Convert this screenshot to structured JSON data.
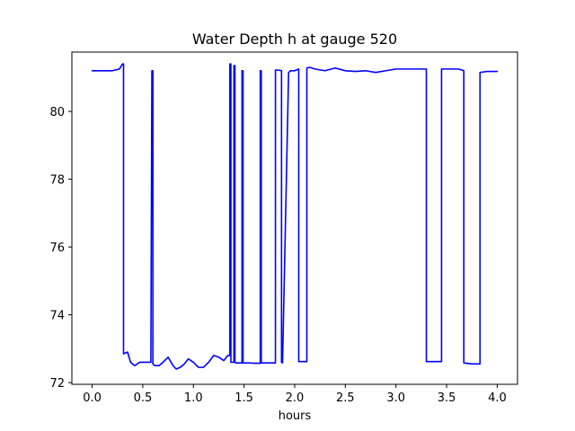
{
  "chart_data": {
    "type": "line",
    "title": "Water Depth h at gauge 520",
    "xlabel": "hours",
    "ylabel": "",
    "xlim": [
      -0.2,
      4.2
    ],
    "ylim": [
      71.95,
      81.75
    ],
    "xticks": [
      0.0,
      0.5,
      1.0,
      1.5,
      2.0,
      2.5,
      3.0,
      3.5,
      4.0
    ],
    "xtick_labels": [
      "0.0",
      "0.5",
      "1.0",
      "1.5",
      "2.0",
      "2.5",
      "3.0",
      "3.5",
      "4.0"
    ],
    "yticks": [
      72,
      74,
      76,
      78,
      80
    ],
    "ytick_labels": [
      "72",
      "74",
      "76",
      "78",
      "80"
    ],
    "grid": false,
    "series": [
      {
        "color": "#0000ff",
        "x": [
          0.0,
          0.1,
          0.2,
          0.27,
          0.3,
          0.31,
          0.31,
          0.35,
          0.38,
          0.42,
          0.47,
          0.52,
          0.58,
          0.59,
          0.59,
          0.6,
          0.6,
          0.62,
          0.66,
          0.7,
          0.75,
          0.8,
          0.83,
          0.87,
          0.91,
          0.95,
          1.0,
          1.05,
          1.1,
          1.15,
          1.2,
          1.25,
          1.3,
          1.34,
          1.36,
          1.36,
          1.37,
          1.37,
          1.4,
          1.4,
          1.41,
          1.41,
          1.42,
          1.48,
          1.48,
          1.49,
          1.49,
          1.55,
          1.6,
          1.66,
          1.66,
          1.67,
          1.67,
          1.75,
          1.81,
          1.81,
          1.83,
          1.87,
          1.87,
          1.88,
          1.88,
          1.94,
          1.94,
          1.96,
          2.0,
          2.04,
          2.04,
          2.08,
          2.12,
          2.12,
          2.15,
          2.2,
          2.3,
          2.4,
          2.5,
          2.6,
          2.7,
          2.8,
          2.9,
          3.0,
          3.1,
          3.2,
          3.3,
          3.3,
          3.45,
          3.45,
          3.48,
          3.55,
          3.62,
          3.67,
          3.67,
          3.75,
          3.83,
          3.83,
          3.9,
          4.0
        ],
        "y": [
          81.2,
          81.2,
          81.2,
          81.25,
          81.4,
          81.4,
          72.85,
          72.9,
          72.6,
          72.5,
          72.6,
          72.6,
          72.6,
          81.2,
          81.2,
          81.2,
          72.55,
          72.5,
          72.5,
          72.6,
          72.75,
          72.5,
          72.4,
          72.45,
          72.55,
          72.7,
          72.6,
          72.45,
          72.45,
          72.6,
          72.8,
          72.75,
          72.65,
          72.8,
          72.8,
          81.4,
          81.4,
          72.6,
          72.6,
          81.35,
          81.35,
          72.6,
          72.58,
          72.58,
          81.2,
          81.2,
          72.58,
          72.58,
          72.57,
          72.57,
          81.2,
          81.2,
          72.58,
          72.58,
          72.58,
          81.22,
          81.22,
          81.2,
          72.6,
          72.58,
          72.58,
          81.15,
          81.15,
          81.2,
          81.2,
          81.25,
          72.62,
          72.62,
          72.62,
          81.28,
          81.3,
          81.25,
          81.2,
          81.28,
          81.2,
          81.18,
          81.2,
          81.15,
          81.2,
          81.25,
          81.25,
          81.25,
          81.25,
          72.62,
          72.62,
          81.25,
          81.25,
          81.25,
          81.25,
          81.2,
          72.58,
          72.55,
          72.55,
          81.15,
          81.18,
          81.18
        ]
      }
    ]
  }
}
